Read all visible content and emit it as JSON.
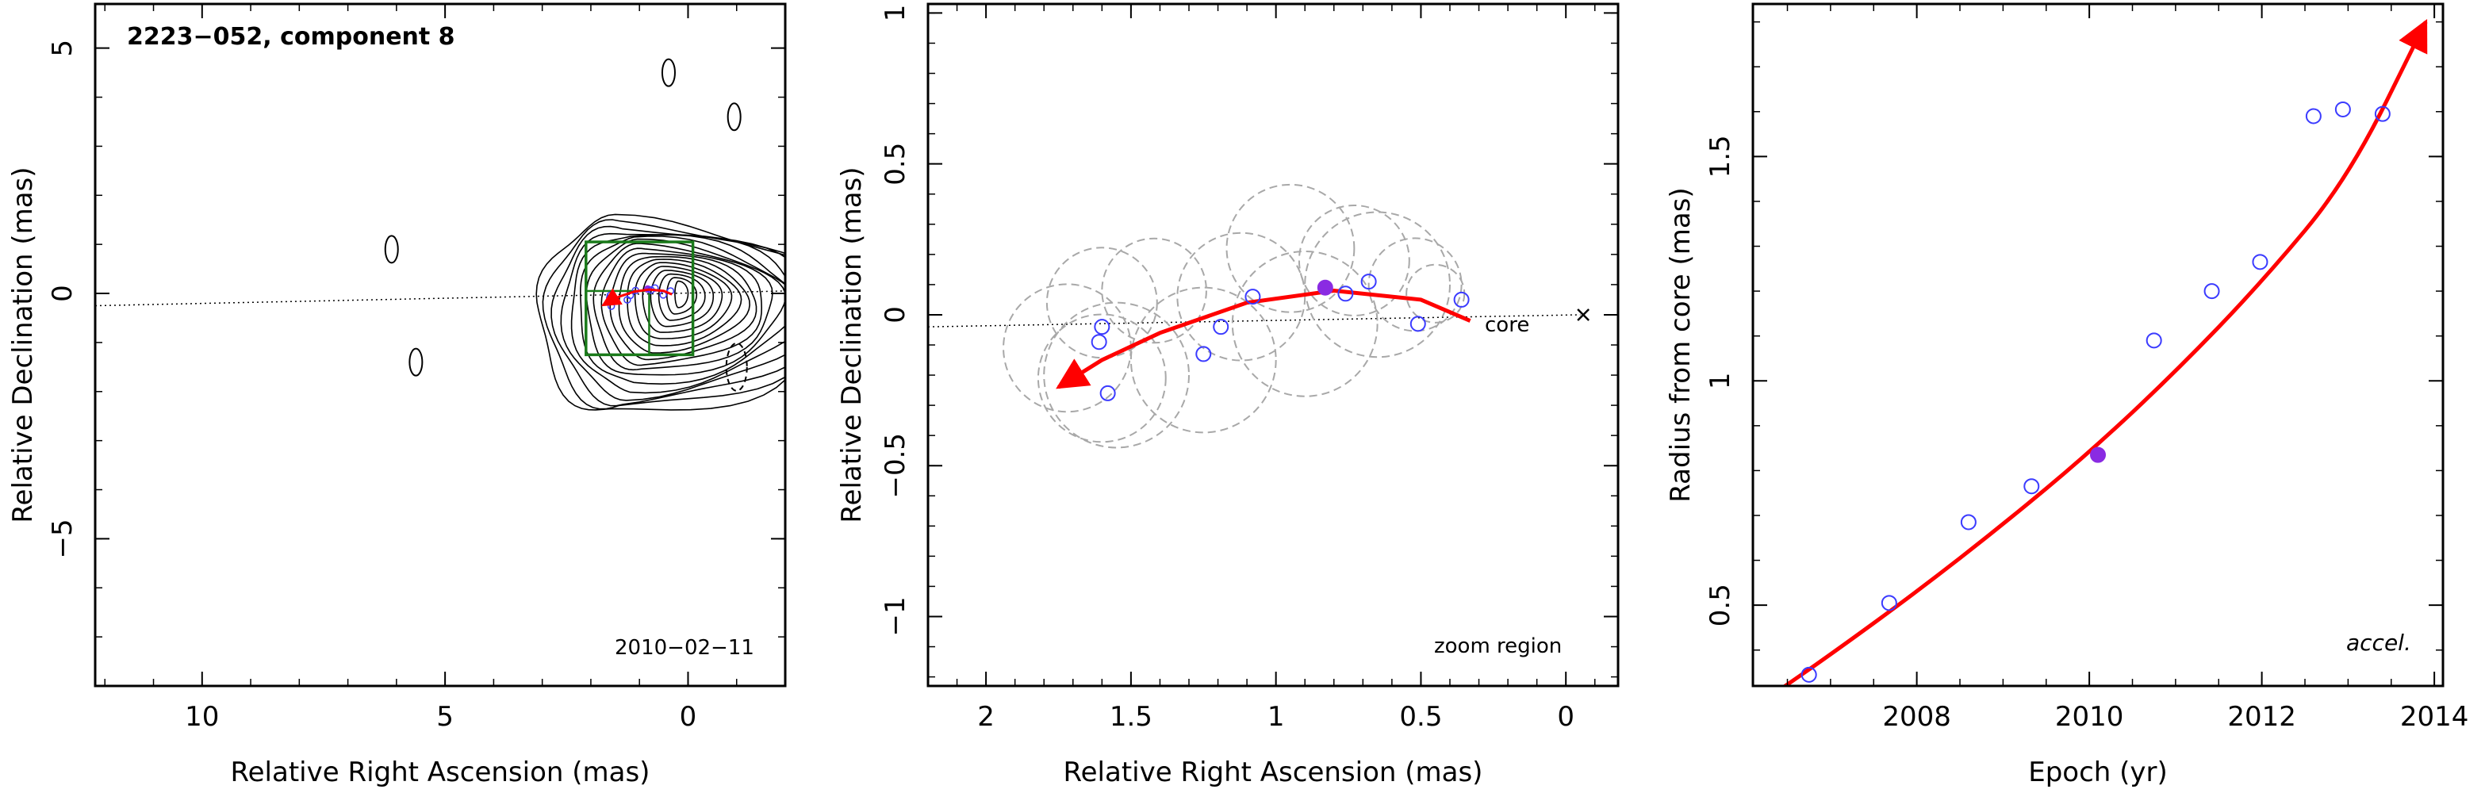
{
  "panels": [
    {
      "id": "left",
      "chart_data": {
        "type": "contour",
        "title": "2223−052, component 8",
        "date_label": "2010−02−11",
        "xlabel": "Relative Right Ascension (mas)",
        "ylabel": "Relative Declination (mas)",
        "xlim": [
          12.2,
          -2.0
        ],
        "ylim": [
          -8.0,
          5.9
        ],
        "x_ticks": [
          10,
          5,
          0
        ],
        "x_tick_labels": [
          "10",
          "5",
          "0"
        ],
        "y_ticks": [
          5,
          0,
          -5
        ],
        "y_tick_labels": [
          "5",
          "0",
          "−5"
        ],
        "contour_centers": [
          [
            0.2,
            0.0
          ],
          [
            0.15,
            0.05
          ],
          [
            0.1,
            0.05
          ],
          [
            0.05,
            0.05
          ]
        ],
        "zoom_box": {
          "x": [
            2.1,
            -0.1
          ],
          "y": [
            -1.25,
            1.05
          ]
        },
        "inner_box": {
          "x": [
            2.1,
            0.8
          ],
          "y": [
            -1.25,
            0.05
          ]
        },
        "isolated_contours": [
          [
            6.1,
            0.9
          ],
          [
            5.6,
            -1.4
          ],
          [
            0.4,
            4.5
          ],
          [
            -0.95,
            3.6
          ]
        ],
        "negative_contour": [
          -1.0,
          -1.5
        ]
      }
    },
    {
      "id": "middle",
      "chart_data": {
        "type": "scatter",
        "annotation": "zoom region",
        "core_label": "core",
        "xlabel": "Relative Right Ascension (mas)",
        "ylabel": "Relative Declination (mas)",
        "xlim": [
          2.2,
          -0.18
        ],
        "ylim": [
          -1.23,
          1.03
        ],
        "x_ticks": [
          2,
          1.5,
          1,
          0.5,
          0
        ],
        "x_tick_labels": [
          "2",
          "1.5",
          "1",
          "0.5",
          "0"
        ],
        "y_ticks": [
          1,
          0.5,
          0,
          -0.5,
          -1
        ],
        "y_tick_labels": [
          "1",
          "0.5",
          "0",
          "−0.5",
          "−1"
        ],
        "points": [
          {
            "x": 1.61,
            "y": -0.09,
            "filled": false
          },
          {
            "x": 1.6,
            "y": -0.04,
            "filled": false
          },
          {
            "x": 1.58,
            "y": -0.26,
            "filled": false
          },
          {
            "x": 1.25,
            "y": -0.13,
            "filled": false
          },
          {
            "x": 1.19,
            "y": -0.04,
            "filled": false
          },
          {
            "x": 1.08,
            "y": 0.06,
            "filled": false
          },
          {
            "x": 0.83,
            "y": 0.09,
            "filled": true
          },
          {
            "x": 0.76,
            "y": 0.07,
            "filled": false
          },
          {
            "x": 0.68,
            "y": 0.11,
            "filled": false
          },
          {
            "x": 0.51,
            "y": -0.03,
            "filled": false
          },
          {
            "x": 0.36,
            "y": 0.05,
            "filled": false
          }
        ],
        "circles": [
          {
            "x": 1.72,
            "y": -0.11,
            "r": 0.22
          },
          {
            "x": 1.6,
            "y": -0.21,
            "r": 0.22
          },
          {
            "x": 1.6,
            "y": 0.04,
            "r": 0.19
          },
          {
            "x": 1.55,
            "y": -0.2,
            "r": 0.25
          },
          {
            "x": 1.42,
            "y": 0.08,
            "r": 0.18
          },
          {
            "x": 1.25,
            "y": -0.15,
            "r": 0.25
          },
          {
            "x": 1.12,
            "y": 0.06,
            "r": 0.22
          },
          {
            "x": 0.95,
            "y": 0.22,
            "r": 0.22
          },
          {
            "x": 0.9,
            "y": -0.03,
            "r": 0.25
          },
          {
            "x": 0.73,
            "y": 0.18,
            "r": 0.19
          },
          {
            "x": 0.65,
            "y": 0.1,
            "r": 0.25
          },
          {
            "x": 0.52,
            "y": 0.1,
            "r": 0.16
          },
          {
            "x": 0.45,
            "y": 0.07,
            "r": 0.1
          }
        ],
        "trajectory_arrow": [
          [
            0.33,
            -0.02
          ],
          [
            0.5,
            0.05
          ],
          [
            0.8,
            0.08
          ],
          [
            1.1,
            0.04
          ],
          [
            1.4,
            -0.06
          ],
          [
            1.6,
            -0.15
          ],
          [
            1.75,
            -0.24
          ]
        ],
        "core_marker": {
          "x": -0.06,
          "y": 0.0
        }
      }
    },
    {
      "id": "right",
      "chart_data": {
        "type": "scatter",
        "annotation": "accel.",
        "xlabel": "Epoch (yr)",
        "ylabel": "Radius from core (mas)",
        "xlim": [
          2006.1,
          2014.1
        ],
        "ylim": [
          0.32,
          1.84
        ],
        "x_ticks": [
          2008,
          2010,
          2012,
          2014
        ],
        "x_tick_labels": [
          "2008",
          "2010",
          "2012",
          "2014"
        ],
        "y_ticks": [
          0.5,
          1.0,
          1.5
        ],
        "y_tick_labels": [
          "0.5",
          "1",
          "1.5"
        ],
        "points": [
          {
            "x": 2006.75,
            "y": 0.345,
            "filled": false
          },
          {
            "x": 2007.68,
            "y": 0.505,
            "filled": false
          },
          {
            "x": 2008.6,
            "y": 0.685,
            "filled": false
          },
          {
            "x": 2009.33,
            "y": 0.765,
            "filled": false
          },
          {
            "x": 2010.1,
            "y": 0.835,
            "filled": true
          },
          {
            "x": 2010.75,
            "y": 1.09,
            "filled": false
          },
          {
            "x": 2011.42,
            "y": 1.2,
            "filled": false
          },
          {
            "x": 2011.98,
            "y": 1.265,
            "filled": false
          },
          {
            "x": 2012.6,
            "y": 1.59,
            "filled": false
          },
          {
            "x": 2012.94,
            "y": 1.605,
            "filled": false
          },
          {
            "x": 2013.4,
            "y": 1.595,
            "filled": false
          }
        ],
        "fit_curve": [
          [
            2006.4,
            0.31
          ],
          [
            2007.0,
            0.39
          ],
          [
            2008.0,
            0.53
          ],
          [
            2009.0,
            0.68
          ],
          [
            2010.0,
            0.84
          ],
          [
            2011.0,
            1.02
          ],
          [
            2012.0,
            1.22
          ],
          [
            2013.0,
            1.45
          ],
          [
            2013.9,
            1.8
          ]
        ]
      }
    }
  ],
  "colors": {
    "axis": "#000000",
    "fit": "#ff0000",
    "points": "#3b3bff",
    "filled_point": "#8a2be2",
    "circles": "#a8a8a8",
    "contours": "#000000",
    "zoom_box": "#1a7a1a"
  }
}
